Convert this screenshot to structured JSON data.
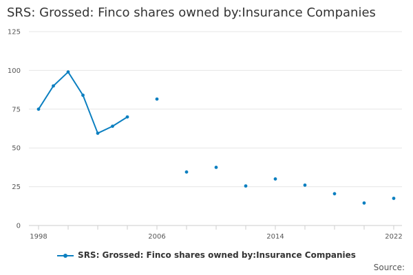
{
  "chart_data": {
    "type": "line",
    "title": "SRS: Grossed: Finco shares owned by:Insurance Companies",
    "xlabel": "",
    "ylabel": "",
    "xlim": [
      1998,
      2022
    ],
    "ylim": [
      0,
      125
    ],
    "x_ticks": [
      1998,
      2006,
      2014,
      2022
    ],
    "y_ticks": [
      0,
      25,
      50,
      75,
      100,
      125
    ],
    "grid": true,
    "legend_position": "bottom",
    "series": [
      {
        "name": "SRS: Grossed: Finco shares owned by:Insurance Companies",
        "color": "#0b7fc0",
        "points": [
          {
            "x": 1998,
            "y": 75
          },
          {
            "x": 1999,
            "y": 90
          },
          {
            "x": 2000,
            "y": 99
          },
          {
            "x": 2001,
            "y": 84
          },
          {
            "x": 2002,
            "y": 59.5
          },
          {
            "x": 2003,
            "y": 64
          },
          {
            "x": 2004,
            "y": 70
          },
          {
            "x": 2006,
            "y": 81.5
          },
          {
            "x": 2008,
            "y": 34.5
          },
          {
            "x": 2010,
            "y": 37.5
          },
          {
            "x": 2012,
            "y": 25.5
          },
          {
            "x": 2014,
            "y": 30
          },
          {
            "x": 2016,
            "y": 26
          },
          {
            "x": 2018,
            "y": 20.5
          },
          {
            "x": 2020,
            "y": 14.5
          },
          {
            "x": 2022,
            "y": 17.5
          }
        ]
      }
    ]
  },
  "legend": {
    "label": "SRS: Grossed: Finco shares owned by:Insurance Companies"
  },
  "source_label": "Source:"
}
